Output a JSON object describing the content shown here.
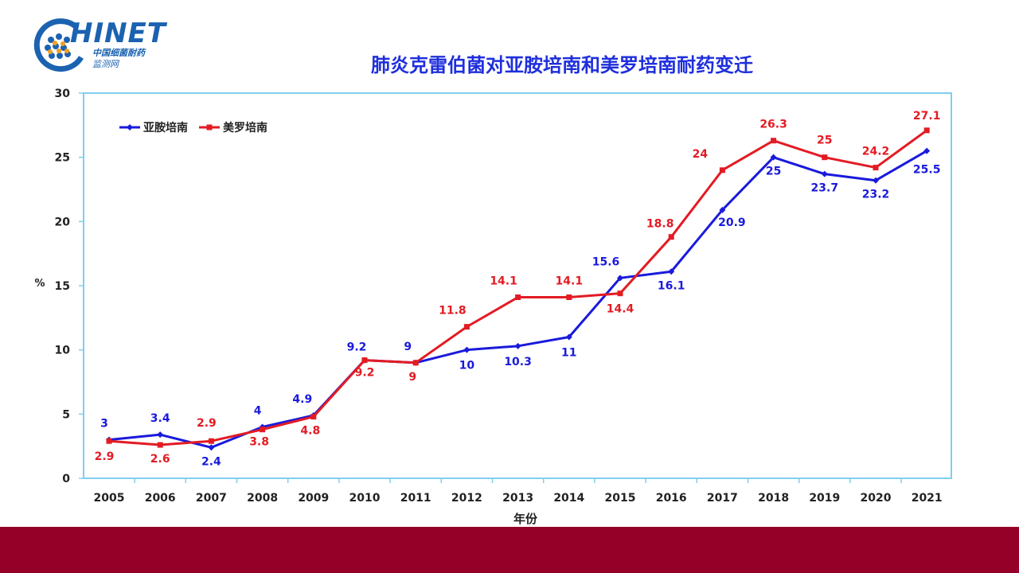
{
  "logo": {
    "word": "HINET",
    "subtitle_line1": "中国细菌耐药",
    "subtitle_line2": "监测网",
    "icon": "network-dots-icon"
  },
  "colors": {
    "series1": "#1a1adc",
    "series2": "#e31b23",
    "axis": "#7fcff0",
    "footer": "#950028",
    "title": "#1f2fdc"
  },
  "chart_data": {
    "type": "line",
    "title": "肺炎克雷伯菌对亚胺培南和美罗培南耐药变迁",
    "xlabel": "年份",
    "ylabel": "%",
    "ylim": [
      0,
      30
    ],
    "yticks": [
      0,
      5,
      10,
      15,
      20,
      25,
      30
    ],
    "grid": false,
    "legend_position": "top-left",
    "categories": [
      "2005",
      "2006",
      "2007",
      "2008",
      "2009",
      "2010",
      "2011",
      "2012",
      "2013",
      "2014",
      "2015",
      "2016",
      "2017",
      "2018",
      "2019",
      "2020",
      "2021"
    ],
    "series": [
      {
        "name": "亚胺培南",
        "color": "#1a1adc",
        "marker": "diamond",
        "values": [
          3,
          3.4,
          2.4,
          4,
          4.9,
          9.2,
          9,
          10,
          10.3,
          11,
          15.6,
          16.1,
          20.9,
          25,
          23.7,
          23.2,
          25.5
        ],
        "labels": [
          "3",
          "3.4",
          "2.4",
          "4",
          "4.9",
          "9.2",
          "9",
          "10",
          "10.3",
          "11",
          "15.6",
          "16.1",
          "20.9",
          "25",
          "23.7",
          "23.2",
          "25.5"
        ]
      },
      {
        "name": "美罗培南",
        "color": "#e31b23",
        "marker": "square",
        "values": [
          2.9,
          2.6,
          2.9,
          3.8,
          4.8,
          9.2,
          9,
          11.8,
          14.1,
          14.1,
          14.4,
          18.8,
          24,
          26.3,
          25,
          24.2,
          27.1
        ],
        "labels": [
          "2.9",
          "2.6",
          "2.9",
          "3.8",
          "4.8",
          "9.2",
          "9",
          "11.8",
          "14.1",
          "14.1",
          "14.4",
          "18.8",
          "24",
          "26.3",
          "25",
          "24.2",
          "27.1"
        ]
      }
    ]
  }
}
